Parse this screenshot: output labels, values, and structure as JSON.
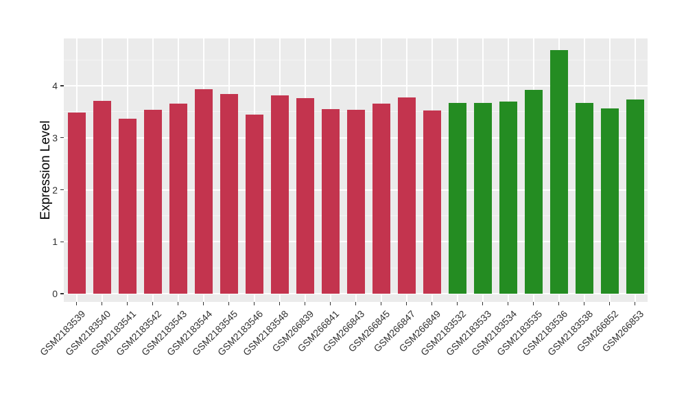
{
  "chart_data": {
    "type": "bar",
    "title": "",
    "xlabel": "",
    "ylabel": "Expression Level",
    "yticks": [
      "0",
      "1",
      "2",
      "3",
      "4"
    ],
    "ytick_values": [
      0,
      1,
      2,
      3,
      4
    ],
    "ylim": [
      0,
      4.93
    ],
    "grid": "on",
    "legend": "none",
    "categories": [
      "GSM2183539",
      "GSM2183540",
      "GSM2183541",
      "GSM2183542",
      "GSM2183543",
      "GSM2183544",
      "GSM2183545",
      "GSM2183546",
      "GSM2183548",
      "GSM266839",
      "GSM266841",
      "GSM266843",
      "GSM266845",
      "GSM266847",
      "GSM266849",
      "GSM2183532",
      "GSM2183533",
      "GSM2183534",
      "GSM2183535",
      "GSM2183536",
      "GSM2183538",
      "GSM266852",
      "GSM266853"
    ],
    "values": [
      3.49,
      3.71,
      3.36,
      3.54,
      3.66,
      3.93,
      3.84,
      3.44,
      3.82,
      3.76,
      3.55,
      3.54,
      3.66,
      3.78,
      3.52,
      3.67,
      3.67,
      3.69,
      3.92,
      4.68,
      3.67,
      3.56,
      3.74
    ],
    "groups": [
      "group1",
      "group1",
      "group1",
      "group1",
      "group1",
      "group1",
      "group1",
      "group1",
      "group1",
      "group1",
      "group1",
      "group1",
      "group1",
      "group1",
      "group1",
      "group2",
      "group2",
      "group2",
      "group2",
      "group2",
      "group2",
      "group2",
      "group2"
    ],
    "colors": {
      "group1": "#C3344E",
      "group2": "#248C22"
    },
    "panel_bg": "#EBEBEB",
    "grid_major_color": "#FFFFFF",
    "grid_minor_color": "#F5F5F5",
    "tick_label_color": "#303030",
    "tick_mark_color": "#333333"
  }
}
